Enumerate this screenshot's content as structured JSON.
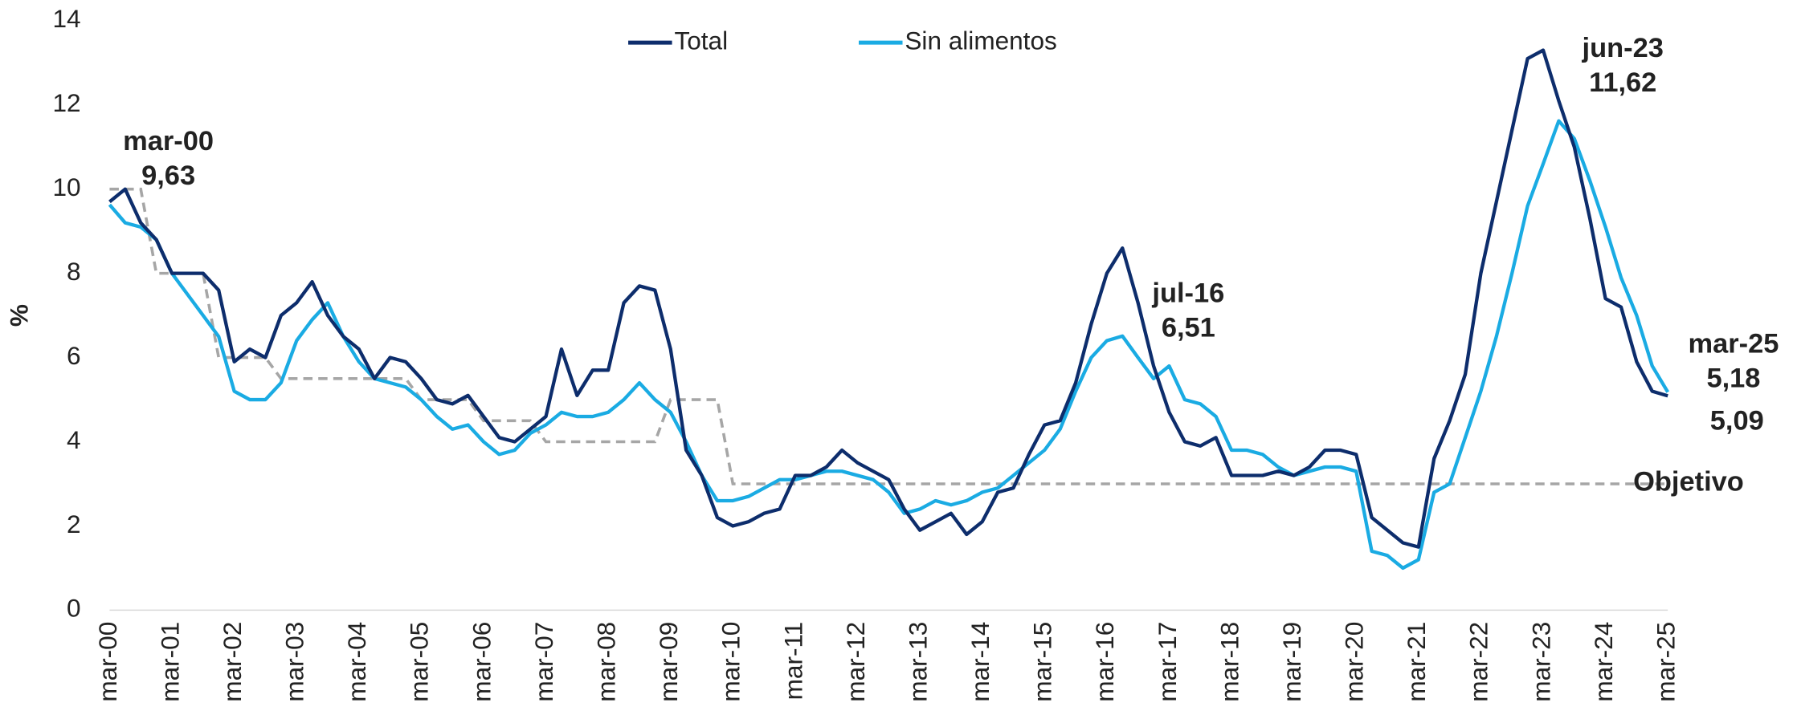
{
  "chart_data": {
    "type": "line",
    "y_label": "%",
    "categories": [
      "mar-00",
      null,
      null,
      null,
      "mar-01",
      null,
      null,
      null,
      "mar-02",
      null,
      null,
      null,
      "mar-03",
      null,
      null,
      null,
      "mar-04",
      null,
      null,
      null,
      "mar-05",
      null,
      null,
      null,
      "mar-06",
      null,
      null,
      null,
      "mar-07",
      null,
      null,
      null,
      "mar-08",
      null,
      null,
      null,
      "mar-09",
      null,
      null,
      null,
      "mar-10",
      null,
      null,
      null,
      "mar-11",
      null,
      null,
      null,
      "mar-12",
      null,
      null,
      null,
      "mar-13",
      null,
      null,
      null,
      "mar-14",
      null,
      null,
      null,
      "mar-15",
      null,
      null,
      null,
      "mar-16",
      null,
      null,
      null,
      "mar-17",
      null,
      null,
      null,
      "mar-18",
      null,
      null,
      null,
      "mar-19",
      null,
      null,
      null,
      "mar-20",
      null,
      null,
      null,
      "mar-21",
      null,
      null,
      null,
      "mar-22",
      null,
      null,
      null,
      "mar-23",
      null,
      null,
      null,
      "mar-24",
      null,
      null,
      null,
      "mar-25"
    ],
    "series": [
      {
        "name": "Total",
        "color": "#0d2d6c",
        "values": [
          9.7,
          10.0,
          9.2,
          8.8,
          8.0,
          8.0,
          8.0,
          7.6,
          5.9,
          6.2,
          6.0,
          7.0,
          7.3,
          7.8,
          7.0,
          6.5,
          6.2,
          5.5,
          6.0,
          5.9,
          5.5,
          5.0,
          4.9,
          5.1,
          4.6,
          4.1,
          4.0,
          4.3,
          4.6,
          6.2,
          5.1,
          5.7,
          5.7,
          7.3,
          7.7,
          7.6,
          6.2,
          3.8,
          3.2,
          2.2,
          2.0,
          2.1,
          2.3,
          2.4,
          3.2,
          3.2,
          3.4,
          3.8,
          3.5,
          3.3,
          3.1,
          2.4,
          1.9,
          2.1,
          2.3,
          1.8,
          2.1,
          2.8,
          2.9,
          3.7,
          4.4,
          4.5,
          5.4,
          6.8,
          8.0,
          8.6,
          7.3,
          5.8,
          4.7,
          4.0,
          3.9,
          4.1,
          3.2,
          3.2,
          3.2,
          3.3,
          3.2,
          3.4,
          3.8,
          3.8,
          3.7,
          2.2,
          1.9,
          1.6,
          1.5,
          3.6,
          4.5,
          5.6,
          8.0,
          9.7,
          11.4,
          13.1,
          13.3,
          12.1,
          11.0,
          9.3,
          7.4,
          7.2,
          5.9,
          5.2,
          5.09
        ]
      },
      {
        "name": "Sin alimentos",
        "color": "#1aabe3",
        "values": [
          9.63,
          9.2,
          9.1,
          8.8,
          8.0,
          7.5,
          7.0,
          6.5,
          5.2,
          5.0,
          5.0,
          5.4,
          6.4,
          6.9,
          7.3,
          6.5,
          5.9,
          5.5,
          5.4,
          5.3,
          5.0,
          4.6,
          4.3,
          4.4,
          4.0,
          3.7,
          3.8,
          4.2,
          4.4,
          4.7,
          4.6,
          4.6,
          4.7,
          5.0,
          5.4,
          5.0,
          4.7,
          4.0,
          3.2,
          2.6,
          2.6,
          2.7,
          2.9,
          3.1,
          3.1,
          3.2,
          3.3,
          3.3,
          3.2,
          3.1,
          2.8,
          2.3,
          2.4,
          2.6,
          2.5,
          2.6,
          2.8,
          2.9,
          3.2,
          3.5,
          3.8,
          4.3,
          5.2,
          6.0,
          6.4,
          6.51,
          6.0,
          5.5,
          5.8,
          5.0,
          4.9,
          4.6,
          3.8,
          3.8,
          3.7,
          3.4,
          3.2,
          3.3,
          3.4,
          3.4,
          3.3,
          1.4,
          1.3,
          1.0,
          1.2,
          2.8,
          3.0,
          4.1,
          5.2,
          6.5,
          8.0,
          9.6,
          10.6,
          11.62,
          11.2,
          10.2,
          9.1,
          7.9,
          7.0,
          5.8,
          5.18
        ]
      }
    ],
    "target": {
      "label": "Objetivo",
      "color": "#a6a6a6",
      "values": [
        10,
        10,
        10,
        8,
        8,
        8,
        8,
        6,
        6,
        6,
        6,
        5.5,
        5.5,
        5.5,
        5.5,
        5.5,
        5.5,
        5.5,
        5.5,
        5.5,
        5,
        5,
        5,
        5,
        4.5,
        4.5,
        4.5,
        4.5,
        4,
        4,
        4,
        4,
        4,
        4,
        4,
        4,
        5,
        5,
        5,
        5,
        3,
        3,
        3,
        3,
        3,
        3,
        3,
        3,
        3,
        3,
        3,
        3,
        3,
        3,
        3,
        3,
        3,
        3,
        3,
        3,
        3,
        3,
        3,
        3,
        3,
        3,
        3,
        3,
        3,
        3,
        3,
        3,
        3,
        3,
        3,
        3,
        3,
        3,
        3,
        3,
        3,
        3,
        3,
        3,
        3,
        3,
        3,
        3,
        3,
        3,
        3,
        3,
        3,
        3,
        3,
        3,
        3,
        3,
        3,
        3,
        3
      ]
    },
    "annotations": [
      {
        "date": "mar-00",
        "value": 9.63,
        "label": "9,63",
        "color": "#1aabe3"
      },
      {
        "date": "jul-16",
        "value": 6.51,
        "label": "6,51",
        "color": "#1aabe3"
      },
      {
        "date": "jun-23",
        "value": 11.62,
        "label": "11,62",
        "color": "#1aabe3"
      },
      {
        "date": "mar-25",
        "value": 5.18,
        "label": "5,18",
        "color": "#1aabe3"
      },
      {
        "value": 5.09,
        "label": "5,09",
        "color": "#0d2d6c"
      }
    ],
    "ylim": [
      0,
      14
    ],
    "yticks": [
      0,
      2,
      4,
      6,
      8,
      10,
      12,
      14
    ],
    "grid": false,
    "legend": "top"
  }
}
